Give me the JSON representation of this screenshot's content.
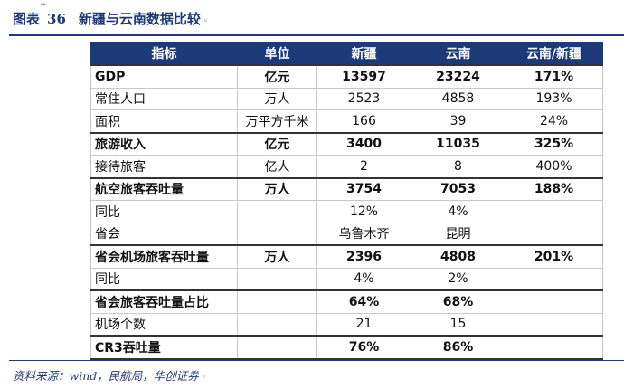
{
  "figure": {
    "label": "图表",
    "number": "36",
    "title": "新疆与云南数据比较",
    "mark": "◦"
  },
  "table": {
    "headers": [
      "指标",
      "单位",
      "新疆",
      "云南",
      "云南/新疆"
    ],
    "rows": [
      {
        "cells": [
          "GDP",
          "亿元",
          "13597",
          "23224",
          "171%"
        ],
        "bold": true
      },
      {
        "cells": [
          "常住人口",
          "万人",
          "2523",
          "4858",
          "193%"
        ],
        "bold": false
      },
      {
        "cells": [
          "面积",
          "万平方千米",
          "166",
          "39",
          "24%"
        ],
        "bold": false
      },
      {
        "cells": [
          "旅游收入",
          "亿元",
          "3400",
          "11035",
          "325%"
        ],
        "bold": true
      },
      {
        "cells": [
          "接待旅客",
          "亿人",
          "2",
          "8",
          "400%"
        ],
        "bold": false
      },
      {
        "cells": [
          "航空旅客吞吐量",
          "万人",
          "3754",
          "7053",
          "188%"
        ],
        "bold": true
      },
      {
        "cells": [
          "同比",
          "",
          "12%",
          "4%",
          ""
        ],
        "bold": false
      },
      {
        "cells": [
          "省会",
          "",
          "乌鲁木齐",
          "昆明",
          ""
        ],
        "bold": false
      },
      {
        "cells": [
          "省会机场旅客吞吐量",
          "万人",
          "2396",
          "4808",
          "201%"
        ],
        "bold": true
      },
      {
        "cells": [
          "同比",
          "",
          "4%",
          "2%",
          ""
        ],
        "bold": false
      },
      {
        "cells": [
          "省会旅客吞吐量占比",
          "",
          "64%",
          "68%",
          ""
        ],
        "bold": true
      },
      {
        "cells": [
          "机场个数",
          "",
          "21",
          "15",
          ""
        ],
        "bold": false
      },
      {
        "cells": [
          "CR3吞吐量",
          "",
          "76%",
          "86%",
          ""
        ],
        "bold": true
      }
    ]
  },
  "source": "资料来源：wind，民航局，华创证券",
  "source_mark": "◦",
  "colors": {
    "accent": "#1d3a78",
    "grid": "#c9c9c9"
  }
}
